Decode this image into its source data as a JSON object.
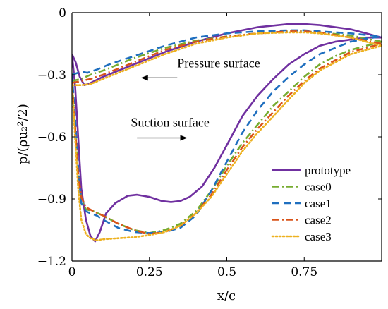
{
  "chart_data": {
    "type": "line",
    "xlabel": "x/c",
    "ylabel": "p/(ρu₂²/2)",
    "xlim": [
      0,
      1
    ],
    "ylim": [
      -1.2,
      0
    ],
    "xticks": [
      {
        "value": 0,
        "label": "0"
      },
      {
        "value": 0.25,
        "label": "0.25"
      },
      {
        "value": 0.5,
        "label": "0.5"
      },
      {
        "value": 0.75,
        "label": "0.75"
      }
    ],
    "yticks": [
      {
        "value": 0,
        "label": "0"
      },
      {
        "value": -0.3,
        "label": "−0.3"
      },
      {
        "value": -0.6,
        "label": "−0.6"
      },
      {
        "value": -0.9,
        "label": "−0.9"
      },
      {
        "value": -1.2,
        "label": "−1.2"
      }
    ],
    "grid": false,
    "legend_position": "bottom-right",
    "annotations": [
      {
        "text": "Pressure surface",
        "x": 0.34,
        "y": -0.265,
        "arrow_from": [
          0.34,
          -0.315
        ],
        "arrow_to": [
          0.225,
          -0.315
        ]
      },
      {
        "text": "Suction surface",
        "x": 0.19,
        "y": -0.55,
        "arrow_from": [
          0.21,
          -0.605
        ],
        "arrow_to": [
          0.37,
          -0.605
        ]
      }
    ],
    "series": [
      {
        "name": "prototype",
        "color": "#7030a0",
        "dash": "solid",
        "pressure_side": [
          [
            0.0,
            -0.2
          ],
          [
            0.012,
            -0.24
          ],
          [
            0.025,
            -0.31
          ],
          [
            0.04,
            -0.35
          ],
          [
            0.06,
            -0.34
          ],
          [
            0.1,
            -0.31
          ],
          [
            0.15,
            -0.28
          ],
          [
            0.2,
            -0.25
          ],
          [
            0.3,
            -0.19
          ],
          [
            0.4,
            -0.14
          ],
          [
            0.5,
            -0.1
          ],
          [
            0.6,
            -0.07
          ],
          [
            0.7,
            -0.055
          ],
          [
            0.75,
            -0.055
          ],
          [
            0.8,
            -0.06
          ],
          [
            0.9,
            -0.08
          ],
          [
            0.95,
            -0.1
          ],
          [
            1.0,
            -0.12
          ]
        ],
        "suction_side": [
          [
            0.0,
            -0.2
          ],
          [
            0.01,
            -0.35
          ],
          [
            0.02,
            -0.6
          ],
          [
            0.03,
            -0.85
          ],
          [
            0.045,
            -1.0
          ],
          [
            0.06,
            -1.08
          ],
          [
            0.075,
            -1.105
          ],
          [
            0.09,
            -1.06
          ],
          [
            0.11,
            -0.97
          ],
          [
            0.14,
            -0.92
          ],
          [
            0.18,
            -0.885
          ],
          [
            0.21,
            -0.88
          ],
          [
            0.25,
            -0.89
          ],
          [
            0.29,
            -0.91
          ],
          [
            0.32,
            -0.915
          ],
          [
            0.35,
            -0.91
          ],
          [
            0.38,
            -0.89
          ],
          [
            0.42,
            -0.84
          ],
          [
            0.46,
            -0.75
          ],
          [
            0.5,
            -0.64
          ],
          [
            0.55,
            -0.5
          ],
          [
            0.6,
            -0.4
          ],
          [
            0.65,
            -0.32
          ],
          [
            0.7,
            -0.25
          ],
          [
            0.75,
            -0.2
          ],
          [
            0.8,
            -0.16
          ],
          [
            0.85,
            -0.14
          ],
          [
            0.9,
            -0.13
          ],
          [
            0.95,
            -0.12
          ],
          [
            1.0,
            -0.12
          ]
        ]
      },
      {
        "name": "case0",
        "color": "#77ac30",
        "dash": "dashdot",
        "pressure_side": [
          [
            0.0,
            -0.33
          ],
          [
            0.03,
            -0.32
          ],
          [
            0.06,
            -0.3
          ],
          [
            0.1,
            -0.28
          ],
          [
            0.15,
            -0.25
          ],
          [
            0.2,
            -0.22
          ],
          [
            0.3,
            -0.17
          ],
          [
            0.4,
            -0.135
          ],
          [
            0.5,
            -0.115
          ],
          [
            0.6,
            -0.1
          ],
          [
            0.7,
            -0.09
          ],
          [
            0.75,
            -0.09
          ],
          [
            0.8,
            -0.095
          ],
          [
            0.9,
            -0.11
          ],
          [
            1.0,
            -0.14
          ]
        ],
        "suction_side": [
          [
            0.0,
            -0.33
          ],
          [
            0.01,
            -0.55
          ],
          [
            0.02,
            -0.78
          ],
          [
            0.03,
            -0.9
          ],
          [
            0.045,
            -0.95
          ],
          [
            0.07,
            -0.96
          ],
          [
            0.1,
            -0.98
          ],
          [
            0.15,
            -1.02
          ],
          [
            0.2,
            -1.05
          ],
          [
            0.25,
            -1.065
          ],
          [
            0.3,
            -1.05
          ],
          [
            0.35,
            -1.02
          ],
          [
            0.4,
            -0.96
          ],
          [
            0.45,
            -0.86
          ],
          [
            0.5,
            -0.74
          ],
          [
            0.55,
            -0.63
          ],
          [
            0.6,
            -0.54
          ],
          [
            0.65,
            -0.45
          ],
          [
            0.7,
            -0.38
          ],
          [
            0.75,
            -0.31
          ],
          [
            0.8,
            -0.25
          ],
          [
            0.85,
            -0.21
          ],
          [
            0.9,
            -0.18
          ],
          [
            0.95,
            -0.16
          ],
          [
            1.0,
            -0.14
          ]
        ]
      },
      {
        "name": "case1",
        "color": "#1f6fbf",
        "dash": "dashed",
        "pressure_side": [
          [
            0.0,
            -0.3
          ],
          [
            0.03,
            -0.285
          ],
          [
            0.05,
            -0.29
          ],
          [
            0.08,
            -0.275
          ],
          [
            0.12,
            -0.25
          ],
          [
            0.2,
            -0.21
          ],
          [
            0.3,
            -0.16
          ],
          [
            0.4,
            -0.12
          ],
          [
            0.5,
            -0.1
          ],
          [
            0.6,
            -0.09
          ],
          [
            0.7,
            -0.085
          ],
          [
            0.75,
            -0.085
          ],
          [
            0.8,
            -0.09
          ],
          [
            0.9,
            -0.1
          ],
          [
            1.0,
            -0.115
          ]
        ],
        "suction_side": [
          [
            0.0,
            -0.3
          ],
          [
            0.01,
            -0.5
          ],
          [
            0.02,
            -0.75
          ],
          [
            0.03,
            -0.92
          ],
          [
            0.045,
            -0.96
          ],
          [
            0.06,
            -0.97
          ],
          [
            0.08,
            -0.98
          ],
          [
            0.1,
            -1.0
          ],
          [
            0.15,
            -1.04
          ],
          [
            0.2,
            -1.06
          ],
          [
            0.25,
            -1.065
          ],
          [
            0.3,
            -1.06
          ],
          [
            0.35,
            -1.04
          ],
          [
            0.4,
            -0.98
          ],
          [
            0.45,
            -0.86
          ],
          [
            0.5,
            -0.72
          ],
          [
            0.55,
            -0.58
          ],
          [
            0.6,
            -0.47
          ],
          [
            0.65,
            -0.38
          ],
          [
            0.7,
            -0.31
          ],
          [
            0.75,
            -0.25
          ],
          [
            0.8,
            -0.2
          ],
          [
            0.85,
            -0.17
          ],
          [
            0.9,
            -0.14
          ],
          [
            0.95,
            -0.125
          ],
          [
            1.0,
            -0.115
          ]
        ]
      },
      {
        "name": "case2",
        "color": "#d95319",
        "dash": "dashdot",
        "pressure_side": [
          [
            0.0,
            -0.34
          ],
          [
            0.03,
            -0.33
          ],
          [
            0.06,
            -0.32
          ],
          [
            0.1,
            -0.3
          ],
          [
            0.15,
            -0.27
          ],
          [
            0.2,
            -0.24
          ],
          [
            0.3,
            -0.18
          ],
          [
            0.4,
            -0.14
          ],
          [
            0.5,
            -0.115
          ],
          [
            0.6,
            -0.1
          ],
          [
            0.7,
            -0.09
          ],
          [
            0.75,
            -0.09
          ],
          [
            0.8,
            -0.095
          ],
          [
            0.9,
            -0.12
          ],
          [
            1.0,
            -0.15
          ]
        ],
        "suction_side": [
          [
            0.0,
            -0.34
          ],
          [
            0.01,
            -0.55
          ],
          [
            0.02,
            -0.78
          ],
          [
            0.03,
            -0.89
          ],
          [
            0.045,
            -0.94
          ],
          [
            0.07,
            -0.96
          ],
          [
            0.1,
            -0.98
          ],
          [
            0.15,
            -1.02
          ],
          [
            0.2,
            -1.05
          ],
          [
            0.25,
            -1.07
          ],
          [
            0.3,
            -1.06
          ],
          [
            0.35,
            -1.03
          ],
          [
            0.4,
            -0.97
          ],
          [
            0.45,
            -0.88
          ],
          [
            0.5,
            -0.76
          ],
          [
            0.55,
            -0.65
          ],
          [
            0.6,
            -0.56
          ],
          [
            0.65,
            -0.48
          ],
          [
            0.7,
            -0.4
          ],
          [
            0.75,
            -0.33
          ],
          [
            0.8,
            -0.27
          ],
          [
            0.85,
            -0.23
          ],
          [
            0.9,
            -0.19
          ],
          [
            0.95,
            -0.17
          ],
          [
            1.0,
            -0.15
          ]
        ]
      },
      {
        "name": "case3",
        "color": "#edb120",
        "dash": "dotted",
        "pressure_side": [
          [
            0.0,
            -0.35
          ],
          [
            0.03,
            -0.35
          ],
          [
            0.06,
            -0.345
          ],
          [
            0.1,
            -0.32
          ],
          [
            0.15,
            -0.29
          ],
          [
            0.2,
            -0.26
          ],
          [
            0.3,
            -0.2
          ],
          [
            0.4,
            -0.15
          ],
          [
            0.5,
            -0.12
          ],
          [
            0.6,
            -0.1
          ],
          [
            0.7,
            -0.095
          ],
          [
            0.75,
            -0.095
          ],
          [
            0.8,
            -0.1
          ],
          [
            0.9,
            -0.12
          ],
          [
            1.0,
            -0.16
          ]
        ],
        "suction_side": [
          [
            0.0,
            -0.35
          ],
          [
            0.01,
            -0.6
          ],
          [
            0.02,
            -0.85
          ],
          [
            0.03,
            -1.0
          ],
          [
            0.045,
            -1.07
          ],
          [
            0.06,
            -1.09
          ],
          [
            0.08,
            -1.1
          ],
          [
            0.1,
            -1.095
          ],
          [
            0.15,
            -1.09
          ],
          [
            0.2,
            -1.085
          ],
          [
            0.25,
            -1.075
          ],
          [
            0.3,
            -1.06
          ],
          [
            0.35,
            -1.03
          ],
          [
            0.4,
            -0.97
          ],
          [
            0.45,
            -0.89
          ],
          [
            0.5,
            -0.78
          ],
          [
            0.55,
            -0.67
          ],
          [
            0.6,
            -0.58
          ],
          [
            0.65,
            -0.5
          ],
          [
            0.7,
            -0.42
          ],
          [
            0.75,
            -0.34
          ],
          [
            0.8,
            -0.28
          ],
          [
            0.85,
            -0.24
          ],
          [
            0.9,
            -0.2
          ],
          [
            0.95,
            -0.18
          ],
          [
            1.0,
            -0.16
          ]
        ]
      }
    ]
  }
}
